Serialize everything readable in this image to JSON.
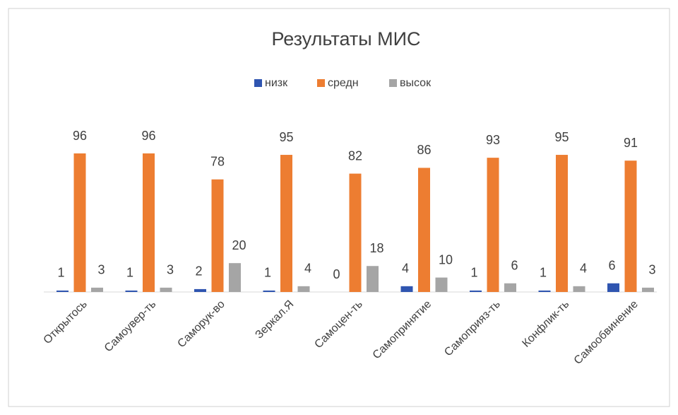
{
  "chart_data": {
    "type": "bar",
    "title": "Результаты МИС",
    "categories": [
      "Открытось",
      "Самоувер-ть",
      "Саморук-во",
      "Зеркал.Я",
      "Самоцен-ть",
      "Самопринятие",
      "Самоприяз-ть",
      "Конфлик-ть",
      "Самообвинение"
    ],
    "series": [
      {
        "name": "низк",
        "color": "#2f55b0",
        "values": [
          1,
          1,
          2,
          1,
          0,
          4,
          1,
          1,
          6
        ]
      },
      {
        "name": "средн",
        "color": "#ed7d31",
        "values": [
          96,
          96,
          78,
          95,
          82,
          86,
          93,
          95,
          91
        ]
      },
      {
        "name": "высок",
        "color": "#a5a5a5",
        "values": [
          3,
          3,
          20,
          4,
          18,
          10,
          6,
          4,
          3
        ]
      }
    ],
    "legend": "top"
  }
}
